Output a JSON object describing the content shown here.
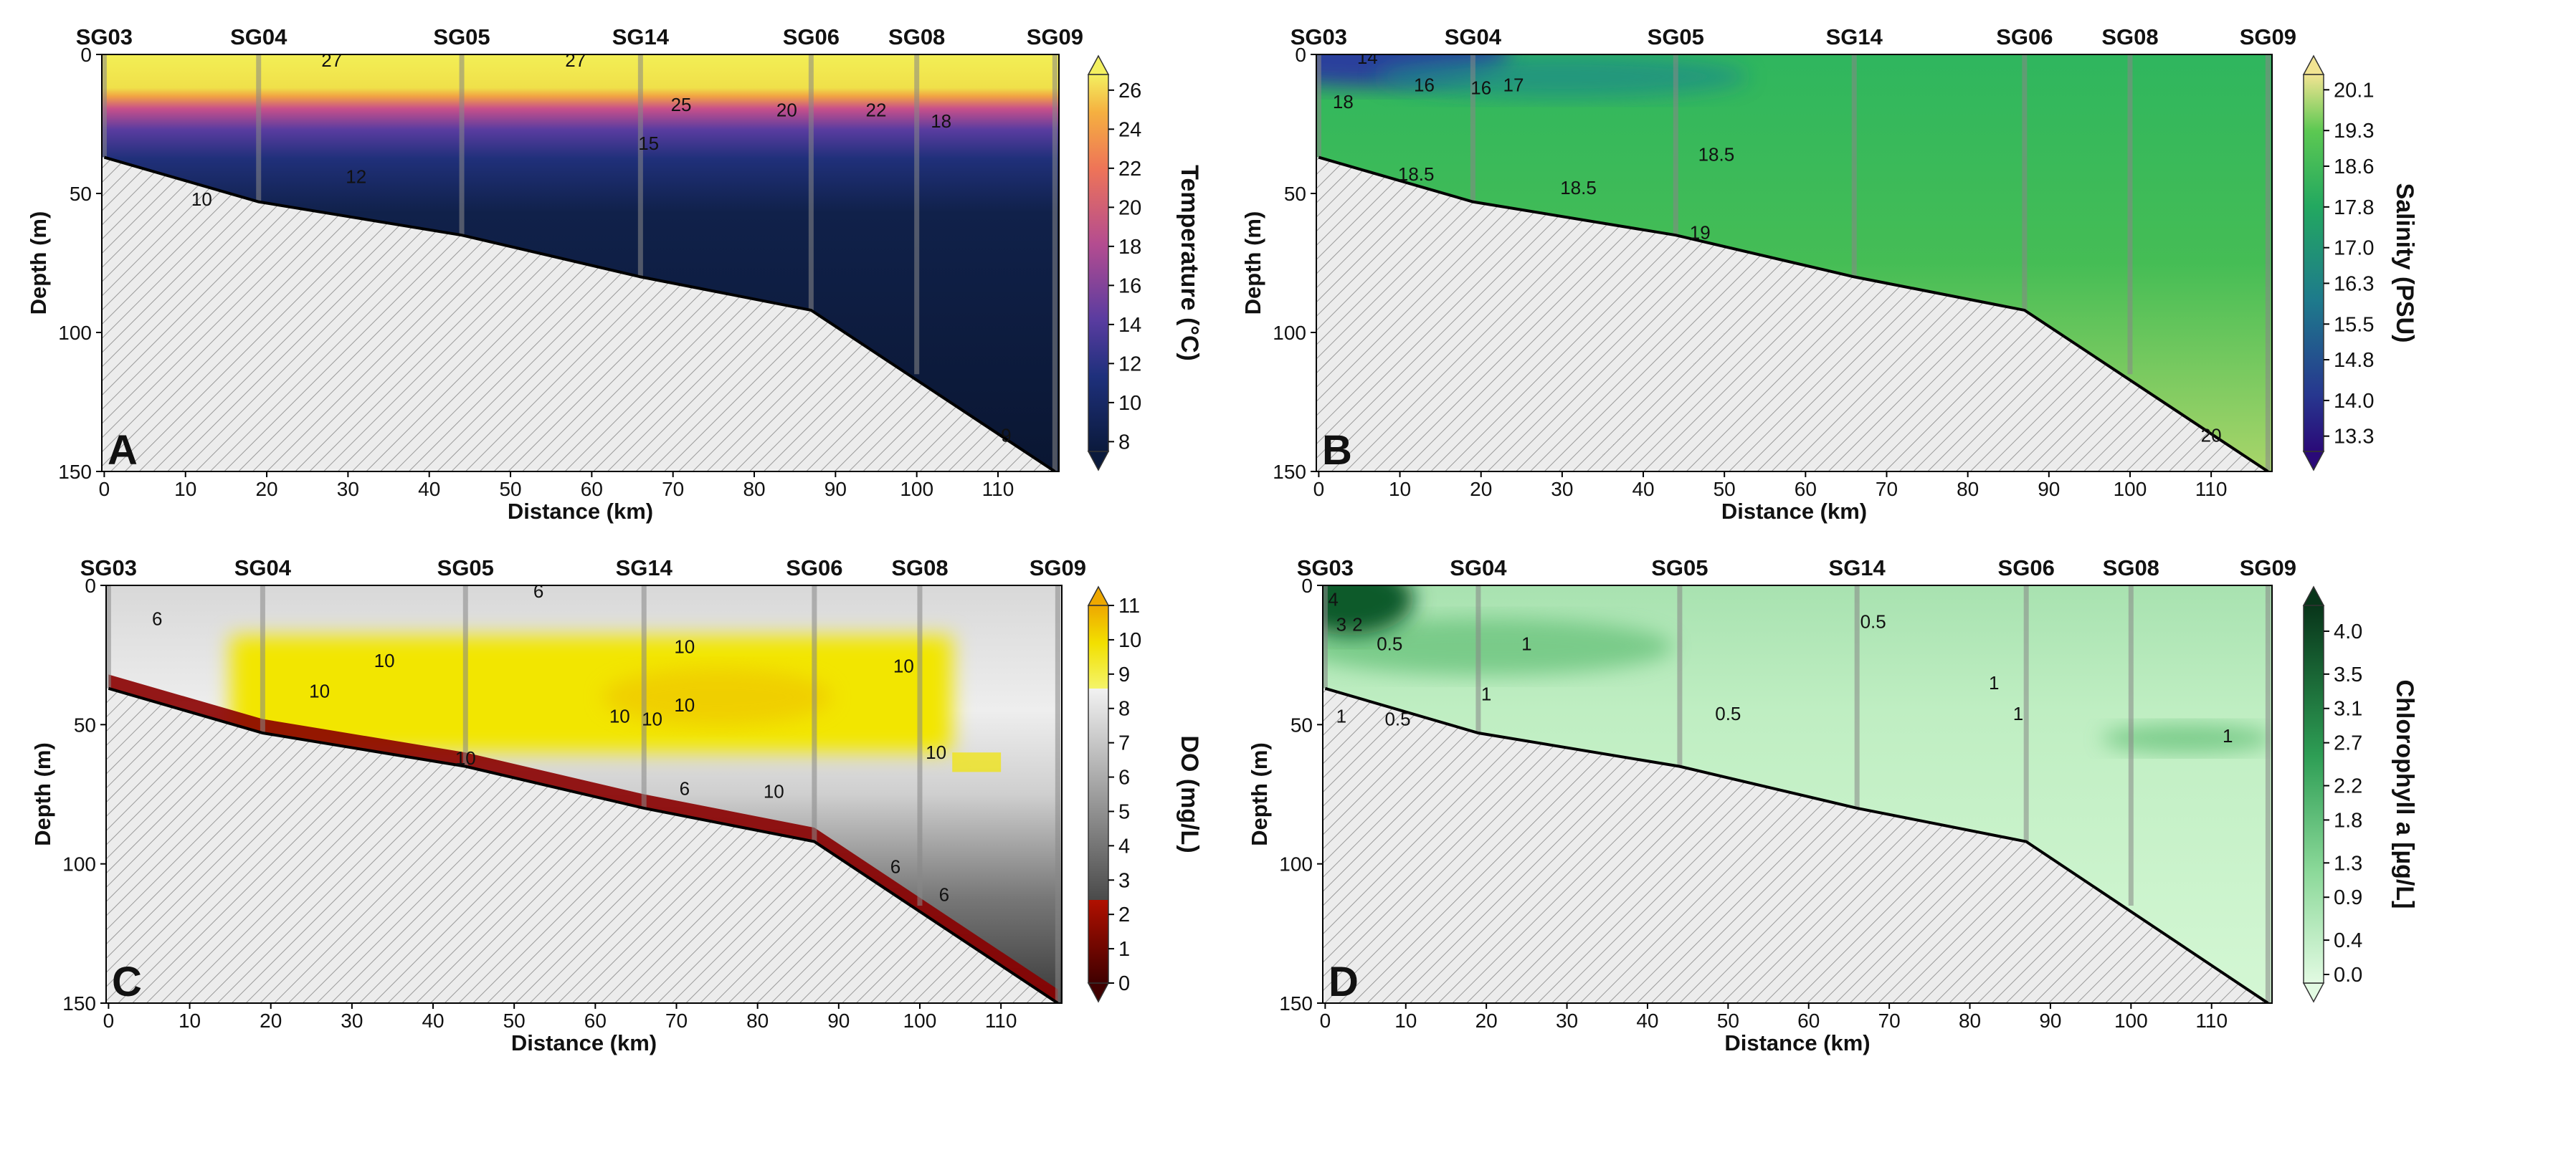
{
  "chart_data": [
    {
      "panel": "A",
      "type": "heatmap",
      "title": "Temperature (°C)",
      "xlabel": "Distance (km)",
      "ylabel": "Depth (m)",
      "xlim": [
        0,
        117
      ],
      "ylim": [
        150,
        0
      ],
      "xticks": [
        0,
        10,
        20,
        30,
        40,
        50,
        60,
        70,
        80,
        90,
        100,
        110
      ],
      "yticks": [
        0,
        50,
        100,
        150
      ],
      "colorbar": {
        "ticks": [
          "8",
          "10",
          "12",
          "14",
          "16",
          "18",
          "20",
          "22",
          "24",
          "26"
        ],
        "min": 7.5,
        "max": 26.8
      },
      "contour_labels": [
        {
          "text": "27",
          "x": 28,
          "d": 2
        },
        {
          "text": "27",
          "x": 58,
          "d": 2
        },
        {
          "text": "25",
          "x": 71,
          "d": 18
        },
        {
          "text": "20",
          "x": 84,
          "d": 20
        },
        {
          "text": "22",
          "x": 95,
          "d": 20
        },
        {
          "text": "18",
          "x": 103,
          "d": 24
        },
        {
          "text": "15",
          "x": 67,
          "d": 32
        },
        {
          "text": "12",
          "x": 31,
          "d": 44
        },
        {
          "text": "10",
          "x": 12,
          "d": 52
        },
        {
          "text": "9",
          "x": 111,
          "d": 137
        }
      ]
    },
    {
      "panel": "B",
      "type": "heatmap",
      "title": "Salinity (PSU)",
      "xlabel": "Distance (km)",
      "ylabel": "Depth (m)",
      "xlim": [
        0,
        117
      ],
      "ylim": [
        150,
        0
      ],
      "xticks": [
        0,
        10,
        20,
        30,
        40,
        50,
        60,
        70,
        80,
        90,
        100,
        110
      ],
      "yticks": [
        0,
        50,
        100,
        150
      ],
      "colorbar": {
        "ticks": [
          "13.3",
          "14.0",
          "14.8",
          "15.5",
          "16.3",
          "17.0",
          "17.8",
          "18.6",
          "19.3",
          "20.1"
        ],
        "min": 13.0,
        "max": 20.4
      },
      "contour_labels": [
        {
          "text": "14",
          "x": 6,
          "d": 1
        },
        {
          "text": "16",
          "x": 13,
          "d": 11
        },
        {
          "text": "16",
          "x": 20,
          "d": 12
        },
        {
          "text": "17",
          "x": 24,
          "d": 11
        },
        {
          "text": "18",
          "x": 3,
          "d": 17
        },
        {
          "text": "18.5",
          "x": 49,
          "d": 36
        },
        {
          "text": "18.5",
          "x": 12,
          "d": 43
        },
        {
          "text": "18.5",
          "x": 32,
          "d": 48
        },
        {
          "text": "19",
          "x": 47,
          "d": 64
        },
        {
          "text": "20",
          "x": 110,
          "d": 137
        }
      ]
    },
    {
      "panel": "C",
      "type": "heatmap",
      "title": "DO (mg/L)",
      "xlabel": "Distance (km)",
      "ylabel": "Depth (m)",
      "xlim": [
        0,
        117
      ],
      "ylim": [
        150,
        0
      ],
      "xticks": [
        0,
        10,
        20,
        30,
        40,
        50,
        60,
        70,
        80,
        90,
        100,
        110
      ],
      "yticks": [
        0,
        50,
        100,
        150
      ],
      "colorbar": {
        "ticks": [
          "0",
          "1",
          "2",
          "3",
          "4",
          "5",
          "6",
          "7",
          "8",
          "9",
          "10",
          "11"
        ],
        "min": 0,
        "max": 11
      },
      "contour_labels": [
        {
          "text": "6",
          "x": 6,
          "d": 12
        },
        {
          "text": "6",
          "x": 53,
          "d": 2
        },
        {
          "text": "10",
          "x": 34,
          "d": 27
        },
        {
          "text": "10",
          "x": 26,
          "d": 38
        },
        {
          "text": "10",
          "x": 71,
          "d": 22
        },
        {
          "text": "10",
          "x": 71,
          "d": 43
        },
        {
          "text": "10",
          "x": 63,
          "d": 47
        },
        {
          "text": "10",
          "x": 67,
          "d": 48
        },
        {
          "text": "10",
          "x": 98,
          "d": 29
        },
        {
          "text": "10",
          "x": 102,
          "d": 60
        },
        {
          "text": "10",
          "x": 44,
          "d": 62
        },
        {
          "text": "6",
          "x": 71,
          "d": 73
        },
        {
          "text": "10",
          "x": 82,
          "d": 74
        },
        {
          "text": "6",
          "x": 97,
          "d": 101
        },
        {
          "text": "6",
          "x": 103,
          "d": 111
        }
      ]
    },
    {
      "panel": "D",
      "type": "heatmap",
      "title": "Chlorophyll a [µg/L]",
      "xlabel": "Distance (km)",
      "ylabel": "Depth (m)",
      "xlim": [
        0,
        117
      ],
      "ylim": [
        150,
        0
      ],
      "xticks": [
        0,
        10,
        20,
        30,
        40,
        50,
        60,
        70,
        80,
        90,
        100,
        110
      ],
      "yticks": [
        0,
        50,
        100,
        150
      ],
      "colorbar": {
        "ticks": [
          "0.0",
          "0.4",
          "0.9",
          "1.3",
          "1.8",
          "2.2",
          "2.7",
          "3.1",
          "3.5",
          "4.0"
        ],
        "min": -0.1,
        "max": 4.3
      },
      "contour_labels": [
        {
          "text": "4",
          "x": 1,
          "d": 5
        },
        {
          "text": "3",
          "x": 2,
          "d": 14
        },
        {
          "text": "2",
          "x": 4,
          "d": 14
        },
        {
          "text": "0.5",
          "x": 8,
          "d": 21
        },
        {
          "text": "1",
          "x": 25,
          "d": 21
        },
        {
          "text": "0.5",
          "x": 68,
          "d": 13
        },
        {
          "text": "1",
          "x": 20,
          "d": 39
        },
        {
          "text": "0.5",
          "x": 9,
          "d": 48
        },
        {
          "text": "1",
          "x": 2,
          "d": 47
        },
        {
          "text": "0.5",
          "x": 50,
          "d": 46
        },
        {
          "text": "1",
          "x": 83,
          "d": 35
        },
        {
          "text": "1",
          "x": 86,
          "d": 46
        },
        {
          "text": "1",
          "x": 112,
          "d": 54
        }
      ]
    }
  ],
  "stations": [
    {
      "name": "SG03",
      "km": 0,
      "depth": 37
    },
    {
      "name": "SG04",
      "km": 19,
      "depth": 53
    },
    {
      "name": "SG05",
      "km": 44,
      "depth": 65
    },
    {
      "name": "SG14",
      "km": 66,
      "depth": 80
    },
    {
      "name": "SG06",
      "km": 87,
      "depth": 92
    },
    {
      "name": "SG08",
      "km": 100,
      "depth": 115
    },
    {
      "name": "SG09",
      "km": 117,
      "depth": 150
    }
  ],
  "bathymetry": [
    [
      0,
      37
    ],
    [
      19,
      53
    ],
    [
      44,
      65
    ],
    [
      66,
      80
    ],
    [
      87,
      92
    ],
    [
      117,
      150
    ]
  ],
  "panel_letters": [
    "A",
    "B",
    "C",
    "D"
  ]
}
